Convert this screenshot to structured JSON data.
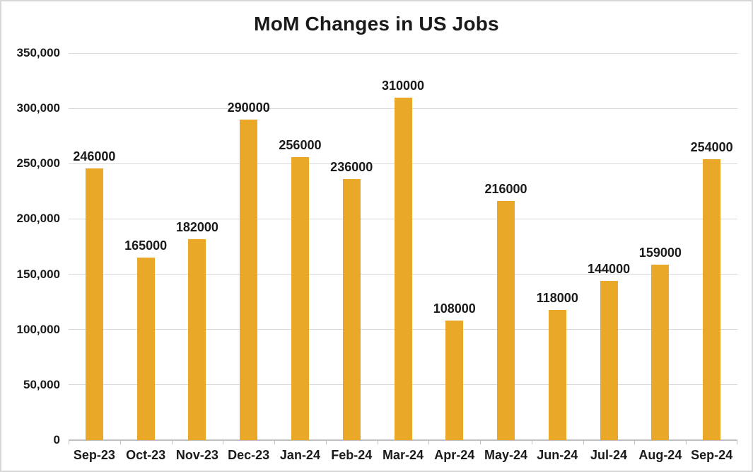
{
  "page": {
    "background": "#FFFFFF",
    "border_color": "#D7D7D7"
  },
  "chart_data": {
    "type": "bar",
    "title": "MoM Changes in US Jobs",
    "xlabel": "",
    "ylabel": "",
    "legend": "none",
    "grid": true,
    "categories": [
      "Sep-23",
      "Oct-23",
      "Nov-23",
      "Dec-23",
      "Jan-24",
      "Feb-24",
      "Mar-24",
      "Apr-24",
      "May-24",
      "Jun-24",
      "Jul-24",
      "Aug-24",
      "Sep-24"
    ],
    "values": [
      246000,
      165000,
      182000,
      290000,
      256000,
      236000,
      310000,
      108000,
      216000,
      118000,
      144000,
      159000,
      254000
    ],
    "data_labels": [
      "246000",
      "165000",
      "182000",
      "290000",
      "256000",
      "236000",
      "310000",
      "108000",
      "216000",
      "118000",
      "144000",
      "159000",
      "254000"
    ],
    "ylim": [
      0,
      350000
    ],
    "yticks": [
      {
        "value": 0,
        "label": "0"
      },
      {
        "value": 50000,
        "label": "50,000"
      },
      {
        "value": 100000,
        "label": "100,000"
      },
      {
        "value": 150000,
        "label": "150,000"
      },
      {
        "value": 200000,
        "label": "200,000"
      },
      {
        "value": 250000,
        "label": "250,000"
      },
      {
        "value": 300000,
        "label": "300,000"
      },
      {
        "value": 350000,
        "label": "350,000"
      }
    ],
    "colors": {
      "bar": "#EAA828",
      "gridline": "#D9D9D9",
      "axis": "#BFBFBF",
      "text": "#1A1A1A"
    }
  }
}
